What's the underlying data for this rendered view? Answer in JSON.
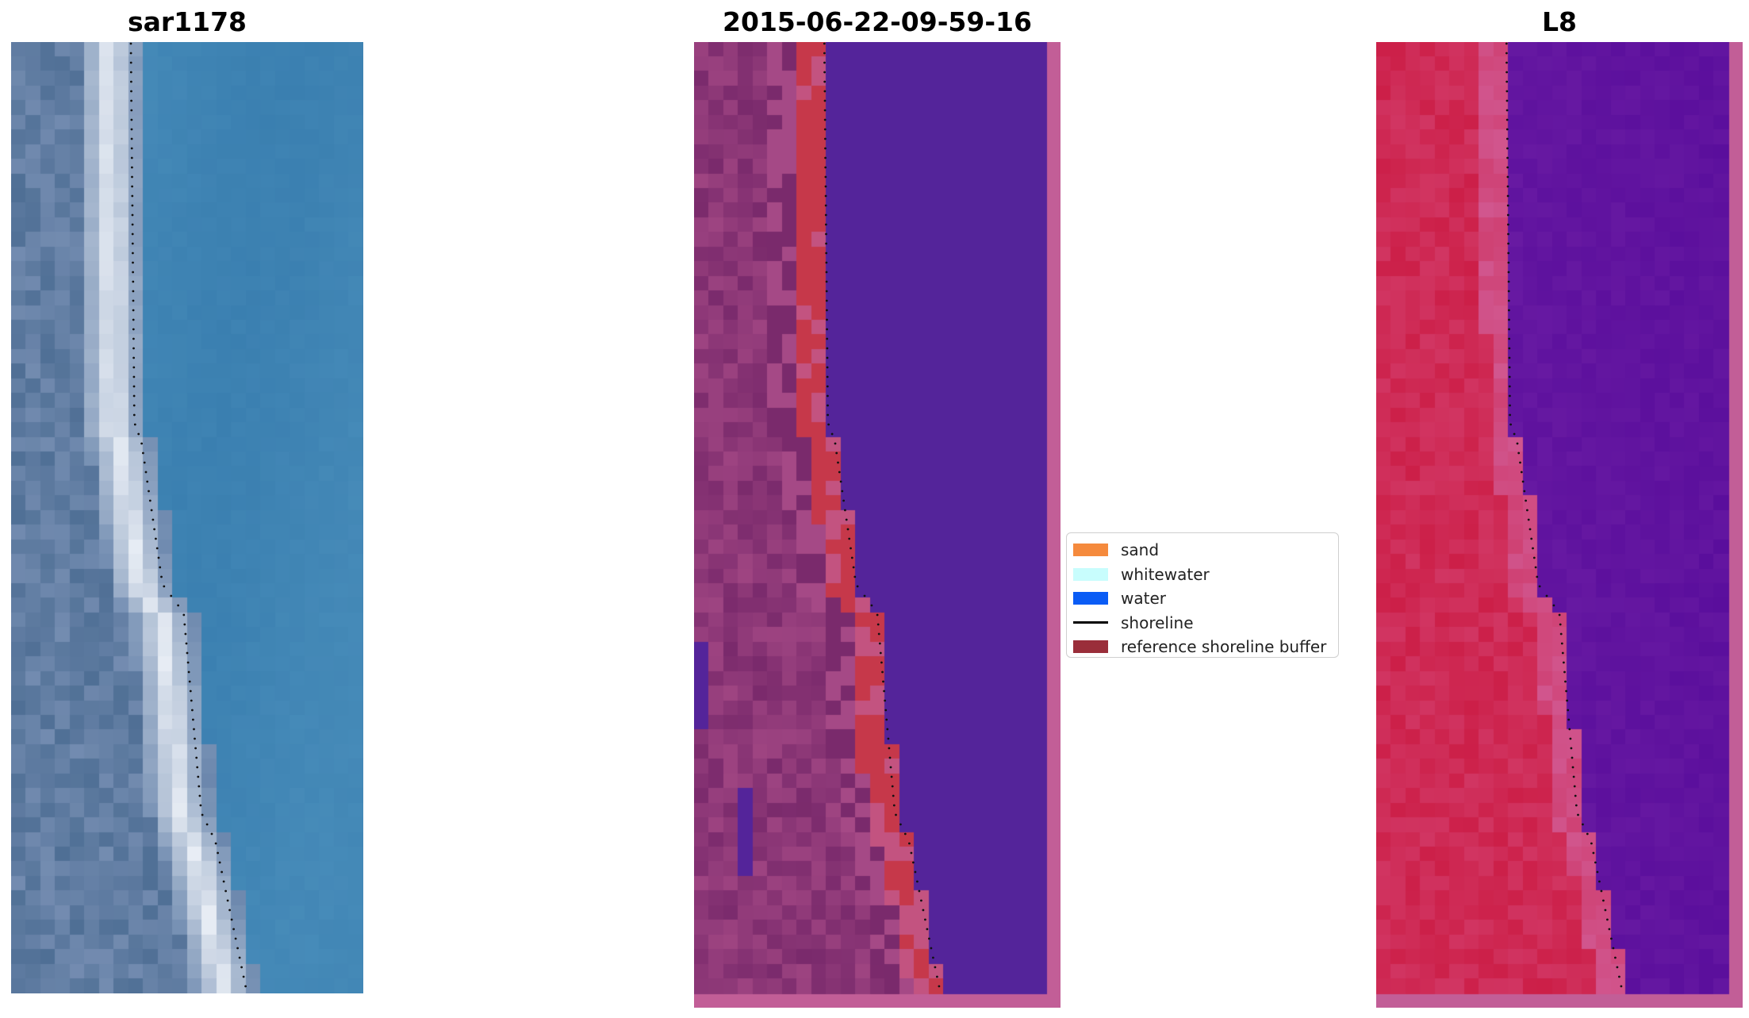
{
  "figure": {
    "panels": [
      {
        "title": "sar1178",
        "kind": "rgb"
      },
      {
        "title": "2015-06-22-09-59-16",
        "kind": "classified"
      },
      {
        "title": "L8",
        "kind": "index"
      }
    ]
  },
  "legend": {
    "items": [
      {
        "label": "sand",
        "type": "patch",
        "color": "#f58a3d"
      },
      {
        "label": "whitewater",
        "type": "patch",
        "color": "#c8fdfd"
      },
      {
        "label": "water",
        "type": "patch",
        "color": "#0a5cf5"
      },
      {
        "label": "shoreline",
        "type": "line",
        "color": "#000000"
      },
      {
        "label": "reference shoreline buffer",
        "type": "patch",
        "color": "#9a2e3a"
      }
    ]
  },
  "colors": {
    "water_blue": "#3a7fb0",
    "land_grey_blue": "#4f6f95",
    "surf_white": "#eef2f8",
    "classified_land": "#7a2a6c",
    "classified_water": "#54249a",
    "classified_buffer": "#c6384a",
    "classified_pink": "#c25e97",
    "index_land": "#cc1f48",
    "index_water": "#5a0e9c"
  }
}
